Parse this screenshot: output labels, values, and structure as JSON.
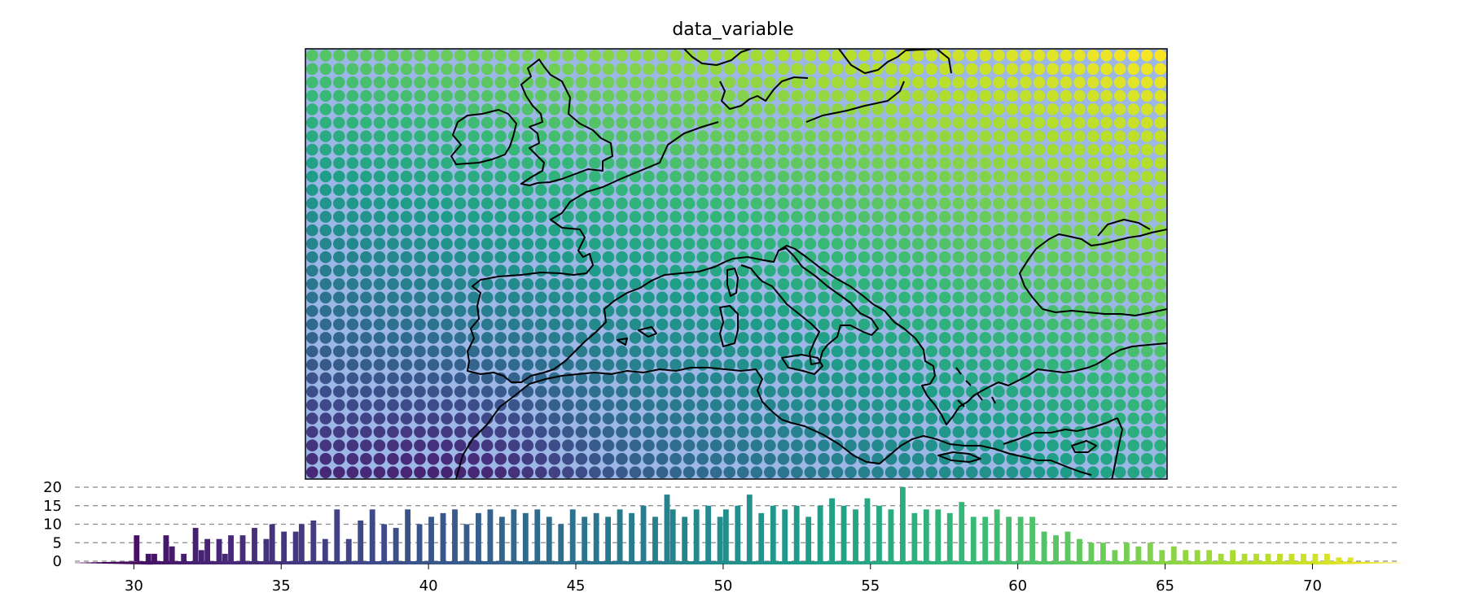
{
  "chart_data": [
    {
      "type": "scatter",
      "subtype": "geographic point map",
      "title": "data_variable",
      "basemap": "coastlines",
      "background_color": "#9cb7e5",
      "colormap": "viridis",
      "domain_lon": [
        -11,
        37
      ],
      "domain_lat": [
        29,
        53
      ],
      "point_spacing_deg": 0.75,
      "color_range": [
        28,
        73
      ],
      "corner_values": {
        "lower_left": 33,
        "lower_right": 55,
        "upper_left": 61,
        "upper_right": 73
      },
      "min_value_location_lon_lat": [
        -1.5,
        29
      ],
      "min_value": 28,
      "gridlines": false
    },
    {
      "type": "bar",
      "subtype": "histogram colorbar",
      "x_ticks": [
        30,
        35,
        40,
        45,
        50,
        55,
        60,
        65,
        70
      ],
      "y_ticks": [
        0,
        5,
        10,
        15,
        20
      ],
      "xlim": [
        28,
        73
      ],
      "ylim": [
        -2,
        20
      ],
      "grid": "horizontal dashed",
      "bin_width": 0.2,
      "bins": [
        {
          "x": 30.0,
          "value": 7
        },
        {
          "x": 30.4,
          "value": 2
        },
        {
          "x": 30.6,
          "value": 2
        },
        {
          "x": 31.0,
          "value": 7
        },
        {
          "x": 31.2,
          "value": 4
        },
        {
          "x": 31.6,
          "value": 2
        },
        {
          "x": 32.0,
          "value": 9
        },
        {
          "x": 32.2,
          "value": 3
        },
        {
          "x": 32.4,
          "value": 6
        },
        {
          "x": 32.8,
          "value": 6
        },
        {
          "x": 33.0,
          "value": 2
        },
        {
          "x": 33.2,
          "value": 7
        },
        {
          "x": 33.6,
          "value": 7
        },
        {
          "x": 34.0,
          "value": 9
        },
        {
          "x": 34.4,
          "value": 6
        },
        {
          "x": 34.6,
          "value": 10
        },
        {
          "x": 35.0,
          "value": 8
        },
        {
          "x": 35.4,
          "value": 8
        },
        {
          "x": 35.6,
          "value": 10
        },
        {
          "x": 36.0,
          "value": 11
        },
        {
          "x": 36.4,
          "value": 6
        },
        {
          "x": 36.8,
          "value": 14
        },
        {
          "x": 37.2,
          "value": 6
        },
        {
          "x": 37.6,
          "value": 11
        },
        {
          "x": 38.0,
          "value": 14
        },
        {
          "x": 38.4,
          "value": 10
        },
        {
          "x": 38.8,
          "value": 9
        },
        {
          "x": 39.2,
          "value": 14
        },
        {
          "x": 39.6,
          "value": 10
        },
        {
          "x": 40.0,
          "value": 12
        },
        {
          "x": 40.4,
          "value": 13
        },
        {
          "x": 40.8,
          "value": 14
        },
        {
          "x": 41.2,
          "value": 10
        },
        {
          "x": 41.6,
          "value": 13
        },
        {
          "x": 42.0,
          "value": 14
        },
        {
          "x": 42.4,
          "value": 12
        },
        {
          "x": 42.8,
          "value": 14
        },
        {
          "x": 43.2,
          "value": 13
        },
        {
          "x": 43.6,
          "value": 14
        },
        {
          "x": 44.0,
          "value": 12
        },
        {
          "x": 44.4,
          "value": 10
        },
        {
          "x": 44.8,
          "value": 14
        },
        {
          "x": 45.2,
          "value": 12
        },
        {
          "x": 45.6,
          "value": 13
        },
        {
          "x": 46.0,
          "value": 12
        },
        {
          "x": 46.4,
          "value": 14
        },
        {
          "x": 46.8,
          "value": 13
        },
        {
          "x": 47.2,
          "value": 15
        },
        {
          "x": 47.6,
          "value": 12
        },
        {
          "x": 48.0,
          "value": 18
        },
        {
          "x": 48.2,
          "value": 14
        },
        {
          "x": 48.6,
          "value": 12
        },
        {
          "x": 49.0,
          "value": 14
        },
        {
          "x": 49.4,
          "value": 15
        },
        {
          "x": 49.8,
          "value": 12
        },
        {
          "x": 50.0,
          "value": 14
        },
        {
          "x": 50.4,
          "value": 15
        },
        {
          "x": 50.8,
          "value": 18
        },
        {
          "x": 51.2,
          "value": 13
        },
        {
          "x": 51.6,
          "value": 15
        },
        {
          "x": 52.0,
          "value": 14
        },
        {
          "x": 52.4,
          "value": 15
        },
        {
          "x": 52.8,
          "value": 12
        },
        {
          "x": 53.2,
          "value": 15
        },
        {
          "x": 53.6,
          "value": 17
        },
        {
          "x": 54.0,
          "value": 15
        },
        {
          "x": 54.4,
          "value": 14
        },
        {
          "x": 54.8,
          "value": 17
        },
        {
          "x": 55.2,
          "value": 15
        },
        {
          "x": 55.6,
          "value": 14
        },
        {
          "x": 56.0,
          "value": 20
        },
        {
          "x": 56.4,
          "value": 13
        },
        {
          "x": 56.8,
          "value": 14
        },
        {
          "x": 57.2,
          "value": 14
        },
        {
          "x": 57.6,
          "value": 13
        },
        {
          "x": 58.0,
          "value": 16
        },
        {
          "x": 58.4,
          "value": 12
        },
        {
          "x": 58.8,
          "value": 12
        },
        {
          "x": 59.2,
          "value": 14
        },
        {
          "x": 59.6,
          "value": 12
        },
        {
          "x": 60.0,
          "value": 12
        },
        {
          "x": 60.4,
          "value": 12
        },
        {
          "x": 60.8,
          "value": 8
        },
        {
          "x": 61.2,
          "value": 7
        },
        {
          "x": 61.6,
          "value": 8
        },
        {
          "x": 62.0,
          "value": 6
        },
        {
          "x": 62.4,
          "value": 5
        },
        {
          "x": 62.8,
          "value": 5
        },
        {
          "x": 63.2,
          "value": 3
        },
        {
          "x": 63.6,
          "value": 5
        },
        {
          "x": 64.0,
          "value": 4
        },
        {
          "x": 64.4,
          "value": 5
        },
        {
          "x": 64.8,
          "value": 3
        },
        {
          "x": 65.2,
          "value": 4
        },
        {
          "x": 65.6,
          "value": 3
        },
        {
          "x": 66.0,
          "value": 3
        },
        {
          "x": 66.4,
          "value": 3
        },
        {
          "x": 66.8,
          "value": 2
        },
        {
          "x": 67.2,
          "value": 3
        },
        {
          "x": 67.6,
          "value": 2
        },
        {
          "x": 68.0,
          "value": 2
        },
        {
          "x": 68.4,
          "value": 2
        },
        {
          "x": 68.8,
          "value": 2
        },
        {
          "x": 69.2,
          "value": 2
        },
        {
          "x": 69.6,
          "value": 2
        },
        {
          "x": 70.0,
          "value": 2
        },
        {
          "x": 70.4,
          "value": 2
        },
        {
          "x": 70.8,
          "value": 1
        },
        {
          "x": 71.2,
          "value": 1
        }
      ]
    }
  ]
}
